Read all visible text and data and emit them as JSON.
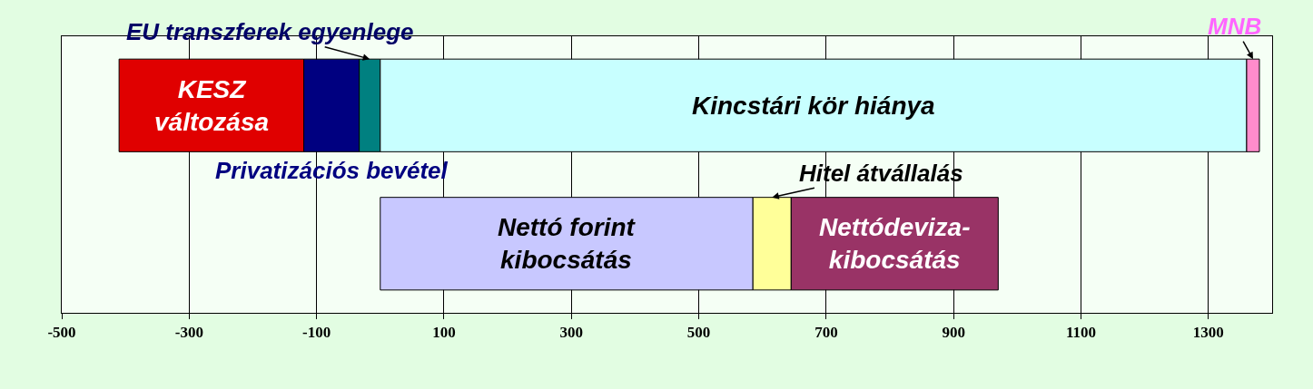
{
  "chart_data": {
    "type": "bar",
    "orientation": "horizontal",
    "categories": [
      null,
      null
    ],
    "series": [
      {
        "name": "KESZ változása",
        "color": "#e00000",
        "values": [
          290,
          null
        ],
        "base": [
          -410,
          null
        ]
      },
      {
        "name": "Privatizációs bevétel",
        "color": "#000080",
        "values": [
          87,
          null
        ],
        "base": [
          -120,
          null
        ]
      },
      {
        "name": "EU transzferek egyenlege",
        "color": "#008080",
        "values": [
          33,
          null
        ],
        "base": [
          -33,
          null
        ]
      },
      {
        "name": "Kincstári kör hiánya",
        "color": "#c8ffff",
        "values": [
          1360,
          null
        ],
        "base": [
          0,
          null
        ]
      },
      {
        "name": "MNB",
        "color": "#ff8ccc",
        "values": [
          20,
          null
        ],
        "base": [
          1360,
          null
        ]
      },
      {
        "name": "Nettó forint kibocsátás",
        "color": "#c8c8ff",
        "values": [
          null,
          585
        ],
        "base": [
          null,
          0
        ]
      },
      {
        "name": "Hitel átvállalás",
        "color": "#ffff99",
        "values": [
          null,
          60
        ],
        "base": [
          null,
          585
        ]
      },
      {
        "name": "Nettódeviza-kibocsátás",
        "color": "#993366",
        "values": [
          null,
          325
        ],
        "base": [
          null,
          645
        ]
      }
    ],
    "xlim": [
      -500,
      1400
    ],
    "xticks": [
      -500,
      -300,
      -100,
      100,
      300,
      500,
      700,
      900,
      1100,
      1300
    ],
    "grid": "x",
    "legend": false,
    "tick_labels": "x"
  }
}
